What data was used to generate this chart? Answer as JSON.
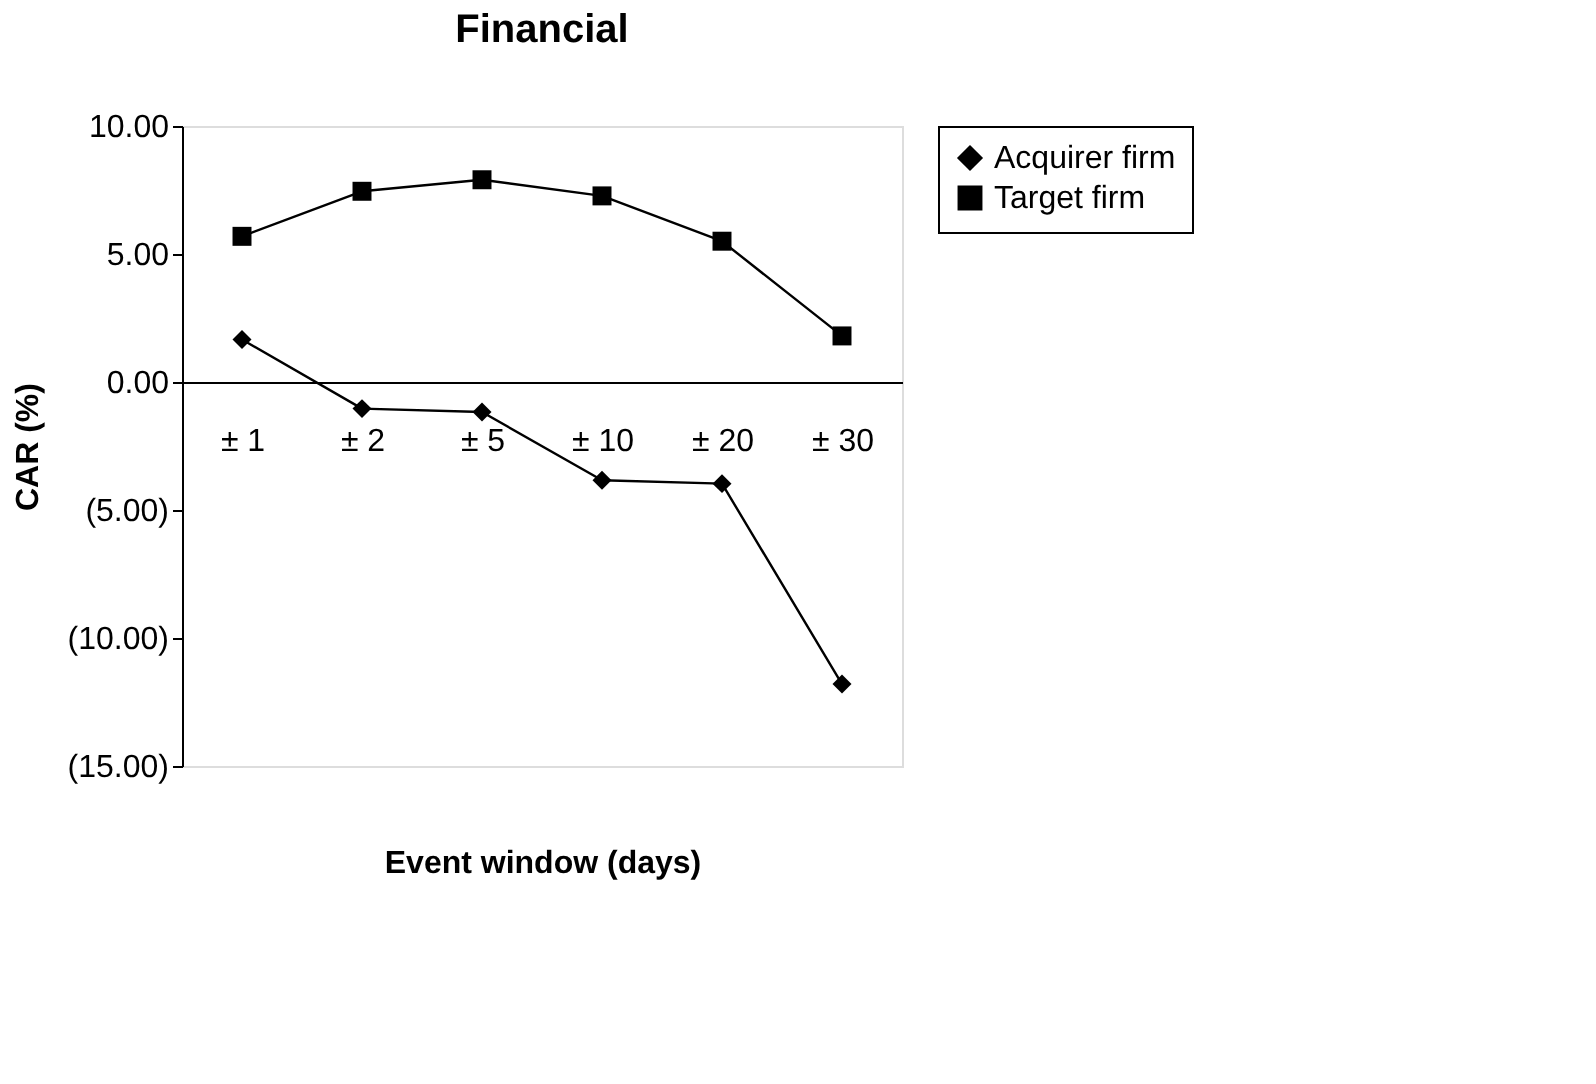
{
  "chart_data": {
    "type": "line",
    "title": "Financial",
    "xlabel": "Event window (days)",
    "ylabel": "CAR (%)",
    "categories": [
      "± 1",
      "± 2",
      "± 5",
      "± 10",
      "± 20",
      "± 30"
    ],
    "series": [
      {
        "name": "Acquirer firm",
        "color": "#000000",
        "marker": "diamond",
        "values": [
          1.66,
          -1.04,
          -1.17,
          -3.84,
          -3.97,
          -11.8
        ]
      },
      {
        "name": "Target firm",
        "color": "#000000",
        "marker": "square",
        "values": [
          5.69,
          7.45,
          7.9,
          7.27,
          5.5,
          1.8
        ]
      }
    ],
    "ylim": [
      -15,
      10
    ],
    "yticks": [
      {
        "value": -15,
        "label": "(15.00)"
      },
      {
        "value": -10,
        "label": "(10.00)"
      },
      {
        "value": -5,
        "label": "(5.00)"
      },
      {
        "value": 0,
        "label": "0.00"
      },
      {
        "value": 5,
        "label": "5.00"
      },
      {
        "value": 10,
        "label": "10.00"
      }
    ],
    "grid": false,
    "legend": "right",
    "line_style": "solid"
  }
}
